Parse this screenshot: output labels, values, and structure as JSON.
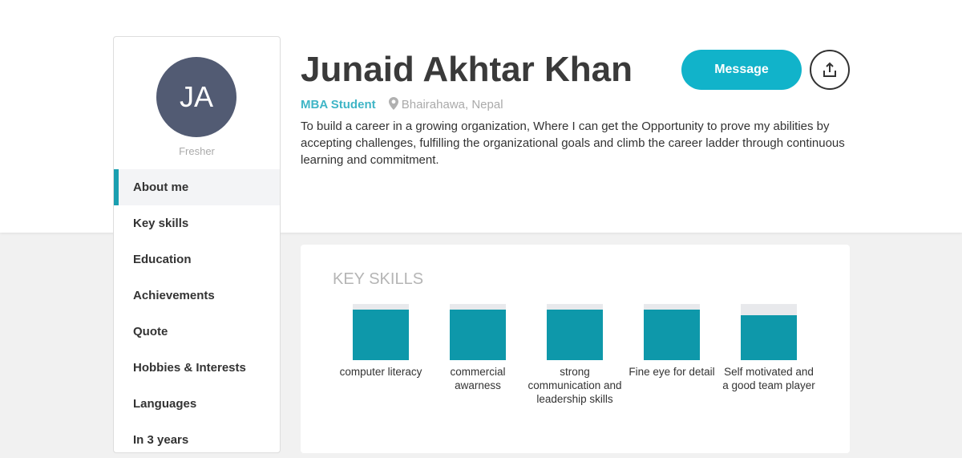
{
  "profile": {
    "initials": "JA",
    "level": "Fresher",
    "name": "Junaid Akhtar Khan",
    "role": "MBA Student",
    "location": "Bhairahawa, Nepal",
    "bio": "To build a career in a growing organization, Where I can get the Opportunity to prove my abilities by accepting challenges, fulfilling the organizational goals and climb the career ladder through continuous learning and commitment."
  },
  "actions": {
    "message": "Message",
    "share_icon": "share-upload-icon"
  },
  "nav": [
    {
      "label": "About me",
      "active": true
    },
    {
      "label": "Key skills"
    },
    {
      "label": "Education"
    },
    {
      "label": "Achievements"
    },
    {
      "label": "Quote"
    },
    {
      "label": "Hobbies & Interests"
    },
    {
      "label": "Languages"
    },
    {
      "label": "In 3 years"
    }
  ],
  "skills": {
    "title": "KEY SKILLS",
    "items": [
      {
        "label": "computer literacy",
        "level": 90
      },
      {
        "label": "commercial awarness",
        "level": 90
      },
      {
        "label": "strong communication and leadership skills",
        "level": 90
      },
      {
        "label": "Fine eye for detail",
        "level": 90
      },
      {
        "label": "Self motivated and a good team player",
        "level": 80
      }
    ]
  },
  "colors": {
    "accent": "#11b3ca",
    "bar": "#0e98aa",
    "avatar": "#525b73"
  }
}
